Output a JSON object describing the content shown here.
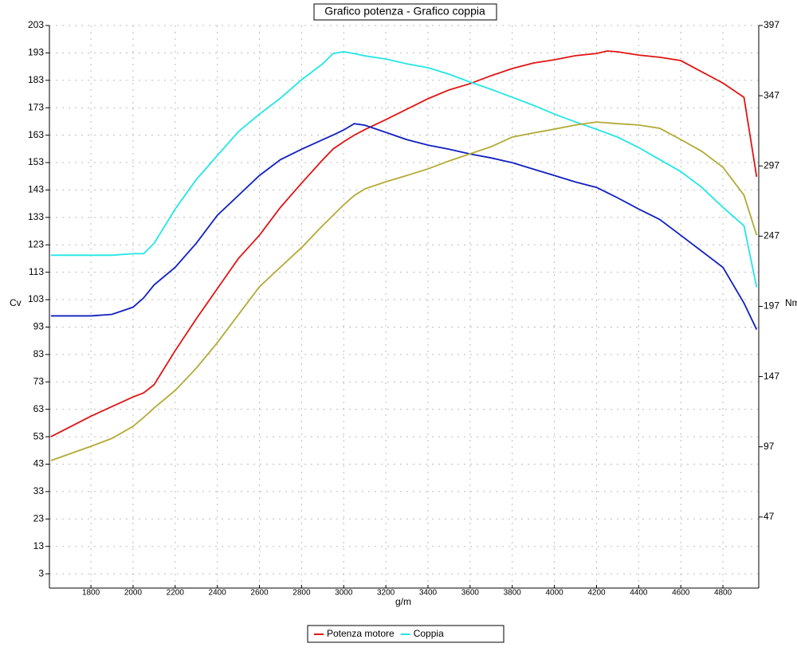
{
  "chart_data": {
    "type": "line",
    "title": "Grafico potenza - Grafico coppia",
    "x_label": "g/m",
    "y_label": "Cv",
    "y2_label": "Nm",
    "x": [
      1610,
      1800,
      1900,
      2000,
      2050,
      2100,
      2200,
      2300,
      2400,
      2500,
      2600,
      2700,
      2800,
      2900,
      2950,
      3000,
      3050,
      3100,
      3200,
      3300,
      3400,
      3500,
      3600,
      3700,
      3800,
      3900,
      4000,
      4100,
      4200,
      4250,
      4300,
      4400,
      4500,
      4600,
      4700,
      4800,
      4900,
      4960
    ],
    "xlim": [
      1603,
      4970
    ],
    "xticks": [
      1800,
      2000,
      2200,
      2400,
      2600,
      2800,
      3000,
      3200,
      3400,
      3600,
      3800,
      4000,
      4200,
      4400,
      4600,
      4800
    ],
    "ylim": [
      -2.2,
      203
    ],
    "yticks": [
      3,
      13,
      23,
      33,
      43,
      53,
      63,
      73,
      83,
      93,
      103,
      113,
      123,
      133,
      143,
      153,
      163,
      173,
      183,
      193,
      203
    ],
    "y2lim": [
      -3.6,
      397
    ],
    "y2ticks": [
      47,
      97,
      147,
      197,
      247,
      297,
      347,
      397
    ],
    "grid": true,
    "series": [
      {
        "name": "Potenza motore",
        "color": "#e01414",
        "values": [
          53,
          60.5,
          64,
          67.5,
          69,
          72,
          84.4,
          96,
          107,
          118,
          126.5,
          136.7,
          145.5,
          154,
          158,
          160.6,
          163,
          165,
          168.7,
          172.5,
          176.3,
          179.5,
          181.8,
          184.7,
          187.3,
          189.3,
          190.5,
          192,
          192.8,
          193.7,
          193.4,
          192.2,
          191.4,
          190.2,
          186.1,
          182,
          176.8,
          147.8
        ]
      },
      {
        "name": "Coppia",
        "color": "#22e6e6",
        "axis": "y2",
        "values": [
          233.4,
          233.4,
          233.4,
          234.5,
          234.5,
          241.9,
          266.3,
          287.3,
          304.4,
          321.4,
          333.9,
          345.3,
          358.4,
          369.7,
          377.1,
          378.3,
          377,
          375.4,
          373.1,
          369.7,
          366.9,
          362.3,
          356.7,
          351.5,
          345.9,
          340.2,
          333.9,
          328.3,
          323.1,
          320.3,
          317.5,
          310.1,
          301.5,
          293,
          281.7,
          267.5,
          254.4,
          210.6
        ]
      },
      {
        "color": "#1020c0",
        "axis": "y2",
        "values": [
          190.2,
          190.2,
          191.3,
          196.4,
          203,
          212.3,
          224.8,
          241.9,
          261.8,
          276,
          290.2,
          301.5,
          308.9,
          315.7,
          319,
          322.6,
          327.1,
          326,
          320.9,
          315.7,
          311.8,
          308.9,
          305.5,
          302.7,
          299.3,
          294.7,
          290.2,
          285.6,
          281.7,
          278,
          274.3,
          266.3,
          258.9,
          247.6,
          236.2,
          224.8,
          199.3,
          180.5
        ]
      },
      {
        "color": "#b3aa35",
        "values": [
          44.3,
          49.5,
          52.4,
          56.8,
          60,
          63.5,
          69.9,
          78,
          87.3,
          97.5,
          107.7,
          114.9,
          122,
          130,
          133.8,
          137.6,
          141,
          143.4,
          146,
          148.3,
          150.7,
          153.6,
          156.2,
          158.8,
          162.3,
          163.8,
          165.2,
          166.7,
          167.8,
          167.5,
          167.2,
          166.7,
          165.5,
          161.4,
          157.1,
          151.3,
          141.1,
          126.5
        ]
      }
    ]
  }
}
